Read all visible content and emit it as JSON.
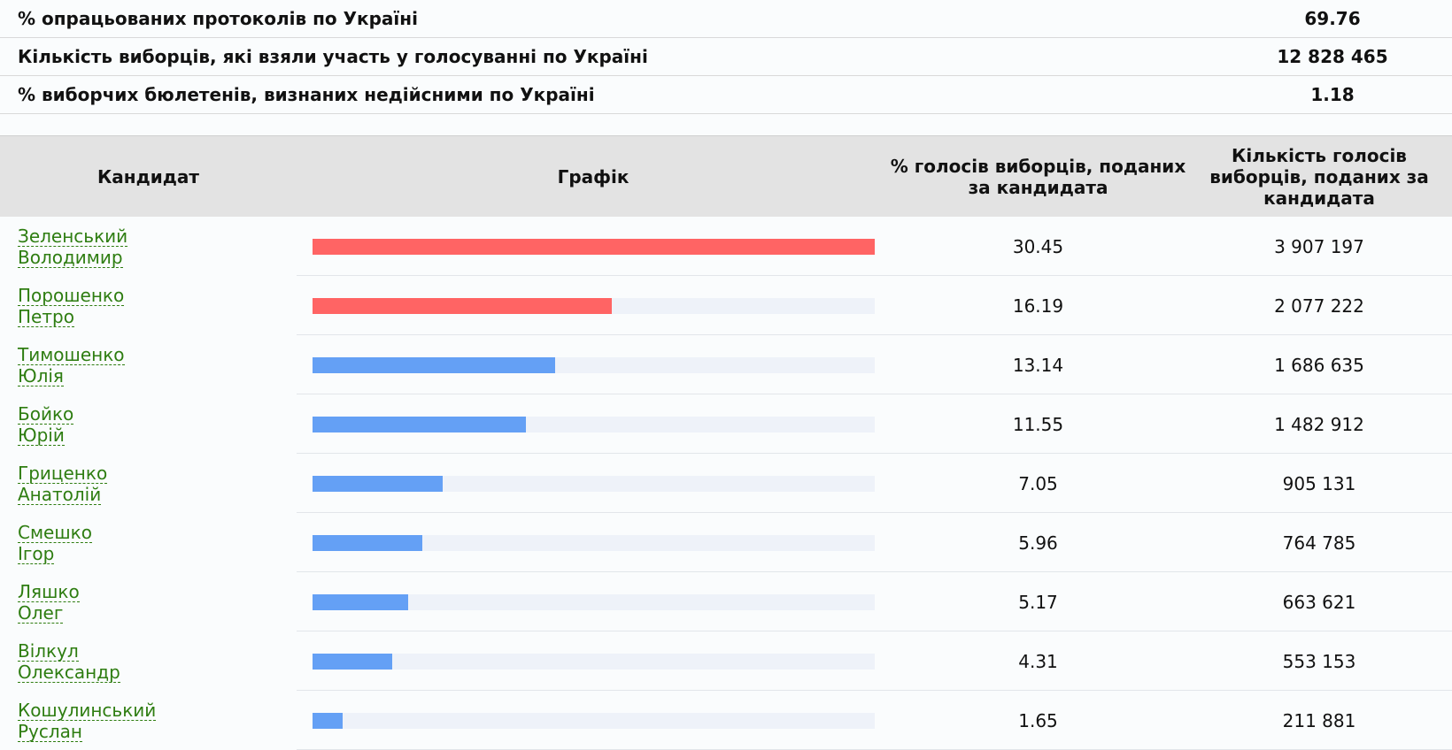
{
  "summary": [
    {
      "label": "% опрацьованих протоколів по Україні",
      "value": "69.76"
    },
    {
      "label": "Кількість виборців, які взяли участь у голосуванні по Україні",
      "value": "12 828 465"
    },
    {
      "label": "% виборчих бюлетенів, визнаних недійсними по Україні",
      "value": "1.18"
    }
  ],
  "table": {
    "headers": {
      "candidate": "Кандидат",
      "chart": "Графік",
      "pct": "% голосів виборців, поданих за кандидата",
      "count": "Кількість голосів виборців, поданих за кандидата"
    },
    "colors": {
      "top": "#ff6464",
      "other": "#64a0f5",
      "track": "#eef2f9"
    },
    "max_pct": 30.45,
    "rows": [
      {
        "surname": "Зеленський",
        "name": "Володимир",
        "pct": "30.45",
        "count": "3 907 197",
        "top": true
      },
      {
        "surname": "Порошенко",
        "name": "Петро",
        "pct": "16.19",
        "count": "2 077 222",
        "top": true
      },
      {
        "surname": "Тимошенко",
        "name": "Юлія",
        "pct": "13.14",
        "count": "1 686 635",
        "top": false
      },
      {
        "surname": "Бойко",
        "name": "Юрій",
        "pct": "11.55",
        "count": "1 482 912",
        "top": false
      },
      {
        "surname": "Гриценко",
        "name": "Анатолій",
        "pct": "7.05",
        "count": "905 131",
        "top": false
      },
      {
        "surname": "Смешко",
        "name": "Ігор",
        "pct": "5.96",
        "count": "764 785",
        "top": false
      },
      {
        "surname": "Ляшко",
        "name": "Олег",
        "pct": "5.17",
        "count": "663 621",
        "top": false
      },
      {
        "surname": "Вілкул",
        "name": "Олександр",
        "pct": "4.31",
        "count": "553 153",
        "top": false
      },
      {
        "surname": "Кошулинський",
        "name": "Руслан",
        "pct": "1.65",
        "count": "211 881",
        "top": false
      }
    ]
  }
}
